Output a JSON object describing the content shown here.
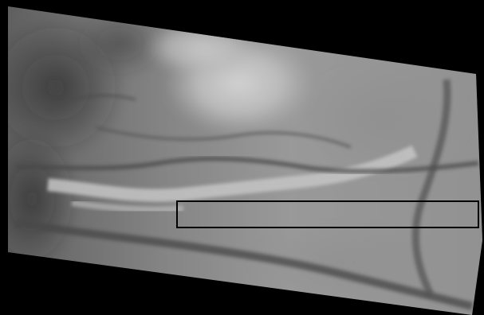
{
  "map": {
    "kind": "grayscale digital elevation model",
    "colors": {
      "nodata": "#000000",
      "low_elevation": "#1a1a1a",
      "high_elevation": "#f4f4f4",
      "selection_outline": "#000000"
    },
    "selection": {
      "shape": "rectangle",
      "style": "black outline"
    }
  }
}
